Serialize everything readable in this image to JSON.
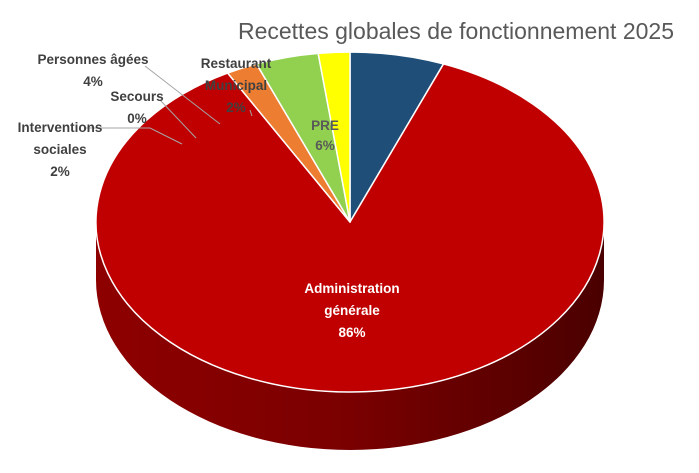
{
  "chart_data": {
    "type": "pie",
    "title": "Recettes globales de fonctionnement 2025",
    "slices": [
      {
        "label": [
          "PRE",
          "6%"
        ],
        "value": 6,
        "color": "#1F4E79"
      },
      {
        "label": [
          "Administration",
          "générale",
          "86%"
        ],
        "value": 86,
        "color": "#C00000"
      },
      {
        "label": [
          "Interventions",
          "sociales",
          "2%"
        ],
        "value": 2,
        "color": "#ED7D31"
      },
      {
        "label": [
          "Secours",
          "0%"
        ],
        "value": 0,
        "color": "#F8CBAD"
      },
      {
        "label": [
          "Personnes âgées",
          "4%"
        ],
        "value": 4,
        "color": "#92D050"
      },
      {
        "label": [
          "Restaurant",
          "Municipal",
          "2%"
        ],
        "value": 2,
        "color": "#FFFF00"
      }
    ],
    "legend": "none",
    "style": "3d-pie"
  }
}
